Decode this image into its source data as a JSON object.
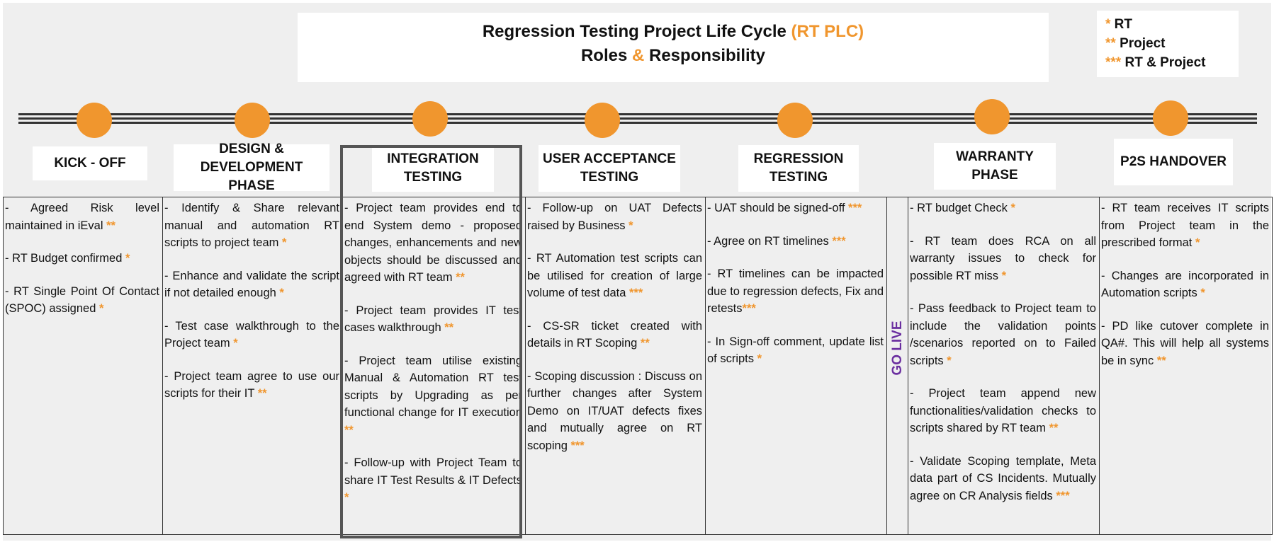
{
  "title": {
    "line1_main": "Regression Testing Project Life Cycle ",
    "line1_accent": "(RT PLC)",
    "line2_a": "Roles ",
    "line2_amp": "&",
    "line2_b": " Responsibility"
  },
  "legend": [
    {
      "stars": "*",
      "label": " RT"
    },
    {
      "stars": "**",
      "label": " Project"
    },
    {
      "stars": "***",
      "label": " RT & Project"
    }
  ],
  "colors": {
    "accent": "#f0962e",
    "go_live": "#6b2fa0",
    "line": "#333333"
  },
  "phases": [
    {
      "label_1": "KICK - OFF",
      "label_2": ""
    },
    {
      "label_1": "DESIGN &",
      "label_2": "DEVELOPMENT PHASE"
    },
    {
      "label_1": "INTEGRATION",
      "label_2": "TESTING"
    },
    {
      "label_1": "USER ACCEPTANCE",
      "label_2": "TESTING"
    },
    {
      "label_1": "REGRESSION",
      "label_2": "TESTING"
    },
    {
      "label_1": "WARRANTY",
      "label_2": "PHASE"
    },
    {
      "label_1": "P2S HANDOVER",
      "label_2": ""
    }
  ],
  "go_live": "GO LIVE",
  "columns": [
    [
      {
        "text": " -  Agreed  Risk  level maintained in iEval ",
        "stars": "**"
      },
      {
        "text": " - RT Budget confirmed ",
        "stars": "*"
      },
      {
        "text": " - RT Single Point Of Contact (SPOC) assigned ",
        "stars": "*"
      }
    ],
    [
      {
        "text": " - Identify & Share relevant manual and automation RT scripts to project team ",
        "stars": "*"
      },
      {
        "text": "  - Enhance and validate the script if not detailed enough ",
        "stars": "*"
      },
      {
        "text": "  - Test case walkthrough to the Project team  ",
        "stars": "*"
      },
      {
        "text": "  - Project team agree to use our scripts for their IT ",
        "stars": "**"
      }
    ],
    [
      {
        "text": " - Project team provides end to end System demo - proposed changes, enhancements and new objects should be discussed and agreed with RT team ",
        "stars": "**"
      },
      {
        "text": "  - Project team provides IT test cases walkthrough ",
        "stars": "**"
      },
      {
        "text": "  - Project team utilise existing Manual & Automation RT test scripts by Upgrading as per functional change for IT execution ",
        "stars": "**"
      },
      {
        "text": "  - Follow-up with Project Team to share IT Test Results & IT Defects ",
        "stars": "*"
      }
    ],
    [
      {
        "text": "  - Follow-up on UAT Defects raised by Business ",
        "stars": "*"
      },
      {
        "text": "  - RT Automation test scripts can be utilised for creation of large volume of test data ",
        "stars": "***"
      },
      {
        "text": "  - CS-SR ticket created with details in RT Scoping ",
        "stars": "**"
      },
      {
        "text": "  - Scoping discussion : Discuss on further changes after System Demo on IT/UAT defects fixes and mutually agree on RT scoping  ",
        "stars": "***"
      }
    ],
    [
      {
        "text": " - UAT should be signed-off ",
        "stars": "***"
      },
      {
        "text": "  - Agree on RT timelines ",
        "stars": "***"
      },
      {
        "text": "  - RT timelines can be impacted due to regression defects, Fix and retests",
        "stars": "***"
      },
      {
        "text": "  - In Sign-off comment, update list of scripts ",
        "stars": "*"
      }
    ],
    [
      {
        "text": " - RT budget Check ",
        "stars": "*"
      },
      {
        "text": "  -  RT  team  does  RCA   on  all warranty issues to check for possible RT miss ",
        "stars": "*"
      },
      {
        "text": "  - Pass feedback to Project team to include the validation points /scenarios reported on to Failed scripts ",
        "stars": "*"
      },
      {
        "text": "  -  Project team append new functionalities/validation checks to scripts shared by RT team  ",
        "stars": "**"
      },
      {
        "text": "  - Validate Scoping template, Meta data part of CS Incidents. Mutually agree on CR Analysis fields ",
        "stars": "***"
      }
    ],
    [
      {
        "text": " - RT team receives IT scripts from Project team in the prescribed format ",
        "stars": "*"
      },
      {
        "text": "  - Changes are incorporated in Automation scripts ",
        "stars": "*"
      },
      {
        "text": "  - PD like cutover complete in QA#. This will help all systems be in sync ",
        "stars": "**"
      }
    ]
  ]
}
